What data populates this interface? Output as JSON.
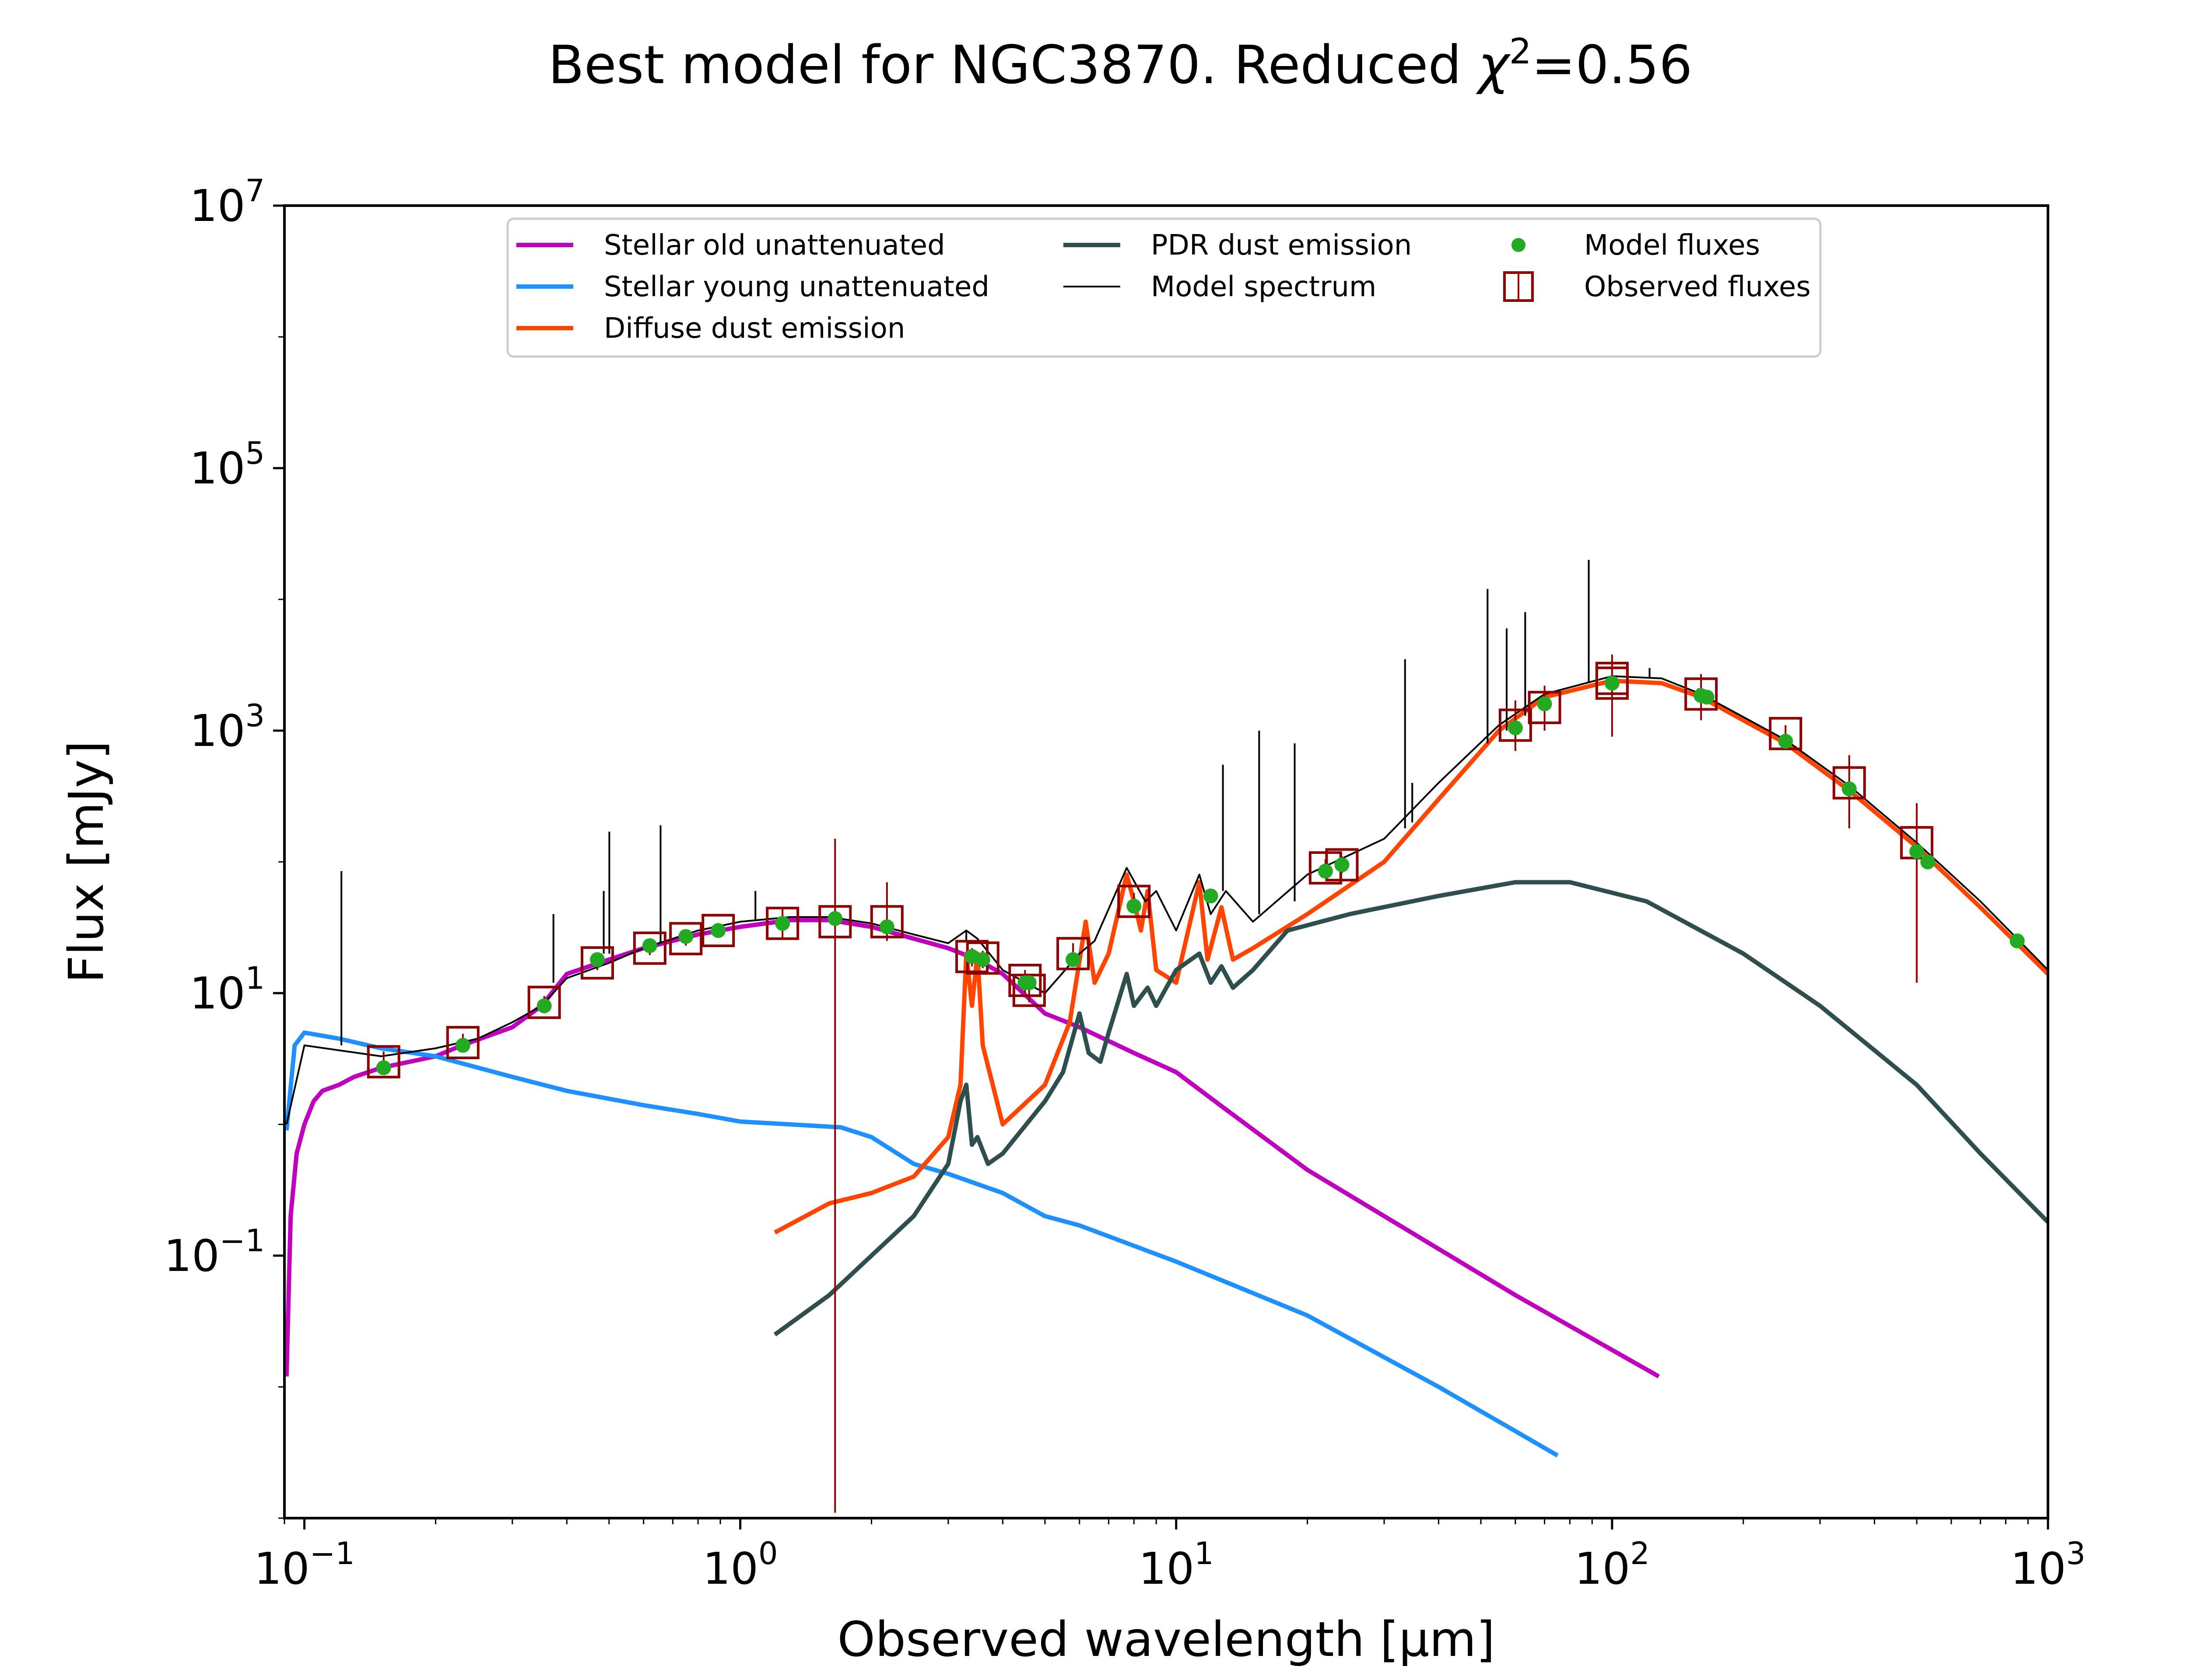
{
  "chart_data": {
    "type": "line",
    "title_main": "Best model for NGC3870. Reduced ",
    "title_chi": "χ",
    "title_chi_exp": "2",
    "title_value": "=0.56",
    "xlabel": "Observed wavelength [μm]",
    "ylabel": "Flux [mJy]",
    "x_scale": "log",
    "y_scale": "log",
    "xlim": [
      0.09,
      1000
    ],
    "ylim": [
      0.001,
      10000000
    ],
    "grid": false,
    "legend_position": "top-center",
    "x_ticks": [
      {
        "value": 0.1,
        "base": "10",
        "exp": "−1"
      },
      {
        "value": 1,
        "base": "10",
        "exp": "0"
      },
      {
        "value": 10,
        "base": "10",
        "exp": "1"
      },
      {
        "value": 100,
        "base": "10",
        "exp": "2"
      },
      {
        "value": 1000,
        "base": "10",
        "exp": "3"
      }
    ],
    "y_ticks": [
      {
        "value": 0.1,
        "base": "10",
        "exp": "−1"
      },
      {
        "value": 10,
        "base": "10",
        "exp": "1"
      },
      {
        "value": 1000,
        "base": "10",
        "exp": "3"
      },
      {
        "value": 100000,
        "base": "10",
        "exp": "5"
      },
      {
        "value": 10000000,
        "base": "10",
        "exp": "7"
      }
    ],
    "legend": [
      {
        "label": "Stellar old unattenuated",
        "kind": "line",
        "color": "#bf00bf"
      },
      {
        "label": "Stellar young unattenuated",
        "kind": "line",
        "color": "#1e90ff"
      },
      {
        "label": "Diffuse dust emission",
        "kind": "line",
        "color": "#ff4500"
      },
      {
        "label": "PDR dust emission",
        "kind": "line",
        "color": "#2f4f4f"
      },
      {
        "label": "Model spectrum",
        "kind": "thinline",
        "color": "#000000"
      },
      {
        "label": "Model fluxes",
        "kind": "dot",
        "color": "#22aa22"
      },
      {
        "label": "Observed fluxes",
        "kind": "square",
        "color": "#8b0000"
      }
    ],
    "series": [
      {
        "name": "Stellar old unattenuated",
        "color": "#bf00bf",
        "points": [
          [
            0.091,
            0.012
          ],
          [
            0.093,
            0.2
          ],
          [
            0.096,
            0.6
          ],
          [
            0.1,
            1.0
          ],
          [
            0.105,
            1.5
          ],
          [
            0.11,
            1.8
          ],
          [
            0.12,
            2.0
          ],
          [
            0.13,
            2.3
          ],
          [
            0.15,
            2.7
          ],
          [
            0.2,
            3.3
          ],
          [
            0.23,
            4.0
          ],
          [
            0.3,
            5.5
          ],
          [
            0.35,
            8.0
          ],
          [
            0.4,
            14
          ],
          [
            0.5,
            18
          ],
          [
            0.6,
            22
          ],
          [
            0.8,
            28
          ],
          [
            1.0,
            32
          ],
          [
            1.3,
            36
          ],
          [
            1.6,
            36
          ],
          [
            2.0,
            32
          ],
          [
            2.5,
            26
          ],
          [
            3.0,
            22
          ],
          [
            3.5,
            18
          ],
          [
            4.0,
            14
          ],
          [
            5.0,
            7.0
          ],
          [
            6.0,
            5.5
          ],
          [
            8.0,
            3.5
          ],
          [
            10.0,
            2.5
          ],
          [
            13.0,
            1.3
          ],
          [
            20.0,
            0.45
          ],
          [
            30.0,
            0.2
          ],
          [
            60.0,
            0.05
          ],
          [
            128.0,
            0.012
          ]
        ]
      },
      {
        "name": "Stellar young unattenuated",
        "color": "#1e90ff",
        "points": [
          [
            0.091,
            0.9
          ],
          [
            0.095,
            4.0
          ],
          [
            0.1,
            5.0
          ],
          [
            0.12,
            4.5
          ],
          [
            0.15,
            3.8
          ],
          [
            0.2,
            3.3
          ],
          [
            0.3,
            2.3
          ],
          [
            0.4,
            1.8
          ],
          [
            0.6,
            1.4
          ],
          [
            0.8,
            1.2
          ],
          [
            1.0,
            1.05
          ],
          [
            1.3,
            1.0
          ],
          [
            1.7,
            0.95
          ],
          [
            2.0,
            0.8
          ],
          [
            2.5,
            0.5
          ],
          [
            3.0,
            0.42
          ],
          [
            4.0,
            0.3
          ],
          [
            5.0,
            0.2
          ],
          [
            6.0,
            0.17
          ],
          [
            10.0,
            0.09
          ],
          [
            20.0,
            0.035
          ],
          [
            40.0,
            0.01
          ],
          [
            75.0,
            0.003
          ]
        ]
      },
      {
        "name": "Diffuse dust emission",
        "color": "#ff4500",
        "points": [
          [
            1.2,
            0.15
          ],
          [
            1.6,
            0.25
          ],
          [
            2.0,
            0.3
          ],
          [
            2.5,
            0.4
          ],
          [
            3.0,
            0.8
          ],
          [
            3.2,
            2.0
          ],
          [
            3.3,
            20
          ],
          [
            3.4,
            8
          ],
          [
            3.5,
            20
          ],
          [
            3.6,
            4
          ],
          [
            4.0,
            1.0
          ],
          [
            5.0,
            2.0
          ],
          [
            5.7,
            6
          ],
          [
            6.2,
            35
          ],
          [
            6.5,
            12
          ],
          [
            7.0,
            20
          ],
          [
            7.7,
            80
          ],
          [
            8.0,
            50
          ],
          [
            8.3,
            30
          ],
          [
            8.6,
            60
          ],
          [
            9.0,
            15
          ],
          [
            10.0,
            12
          ],
          [
            11.3,
            70
          ],
          [
            11.8,
            18
          ],
          [
            12.7,
            45
          ],
          [
            13.5,
            18
          ],
          [
            15.0,
            22
          ],
          [
            20.0,
            40
          ],
          [
            30.0,
            100
          ],
          [
            40.0,
            300
          ],
          [
            55.0,
            1000
          ],
          [
            70.0,
            1800
          ],
          [
            100.0,
            2400
          ],
          [
            130.0,
            2300
          ],
          [
            160.0,
            1800
          ],
          [
            250.0,
            800
          ],
          [
            350.0,
            350
          ],
          [
            500.0,
            130
          ],
          [
            700.0,
            45
          ],
          [
            1000.0,
            14
          ]
        ]
      },
      {
        "name": "PDR dust emission",
        "color": "#2f4f4f",
        "points": [
          [
            1.2,
            0.025
          ],
          [
            1.6,
            0.05
          ],
          [
            2.0,
            0.1
          ],
          [
            2.5,
            0.2
          ],
          [
            3.0,
            0.5
          ],
          [
            3.2,
            1.5
          ],
          [
            3.3,
            2.0
          ],
          [
            3.4,
            0.7
          ],
          [
            3.5,
            0.8
          ],
          [
            3.7,
            0.5
          ],
          [
            4.0,
            0.6
          ],
          [
            5.0,
            1.5
          ],
          [
            5.5,
            2.5
          ],
          [
            6.0,
            7
          ],
          [
            6.3,
            3.5
          ],
          [
            6.7,
            3
          ],
          [
            7.0,
            5
          ],
          [
            7.7,
            14
          ],
          [
            8.0,
            8
          ],
          [
            8.6,
            11
          ],
          [
            9.0,
            8
          ],
          [
            10.0,
            15
          ],
          [
            11.3,
            20
          ],
          [
            12.0,
            12
          ],
          [
            12.7,
            16
          ],
          [
            13.5,
            11
          ],
          [
            15.0,
            15
          ],
          [
            18.0,
            30
          ],
          [
            25.0,
            40
          ],
          [
            40.0,
            55
          ],
          [
            60.0,
            70
          ],
          [
            80.0,
            70
          ],
          [
            120.0,
            50
          ],
          [
            200.0,
            20
          ],
          [
            300.0,
            8
          ],
          [
            500.0,
            2
          ],
          [
            700.0,
            0.6
          ],
          [
            1000.0,
            0.18
          ]
        ]
      },
      {
        "name": "Model spectrum",
        "color": "#000000",
        "points": [
          [
            0.091,
            1.0
          ],
          [
            0.1,
            4.0
          ],
          [
            0.15,
            3.3
          ],
          [
            0.2,
            3.8
          ],
          [
            0.25,
            4.5
          ],
          [
            0.3,
            6.0
          ],
          [
            0.35,
            8.0
          ],
          [
            0.4,
            13
          ],
          [
            0.5,
            17
          ],
          [
            0.6,
            22
          ],
          [
            0.8,
            30
          ],
          [
            1.0,
            35
          ],
          [
            1.3,
            38
          ],
          [
            1.6,
            38
          ],
          [
            2.0,
            34
          ],
          [
            2.5,
            28
          ],
          [
            3.0,
            24
          ],
          [
            3.3,
            30
          ],
          [
            3.5,
            26
          ],
          [
            4.0,
            15
          ],
          [
            5.0,
            10
          ],
          [
            6.0,
            20
          ],
          [
            6.5,
            25
          ],
          [
            7.7,
            90
          ],
          [
            8.5,
            50
          ],
          [
            9.0,
            60
          ],
          [
            10.0,
            30
          ],
          [
            11.3,
            80
          ],
          [
            12.0,
            40
          ],
          [
            13.0,
            60
          ],
          [
            15.0,
            35
          ],
          [
            20.0,
            80
          ],
          [
            30.0,
            150
          ],
          [
            40.0,
            400
          ],
          [
            55.0,
            1100
          ],
          [
            70.0,
            1900
          ],
          [
            100.0,
            2600
          ],
          [
            130.0,
            2500
          ],
          [
            160.0,
            1900
          ],
          [
            250.0,
            850
          ],
          [
            350.0,
            380
          ],
          [
            500.0,
            140
          ],
          [
            700.0,
            50
          ],
          [
            1000.0,
            15
          ]
        ]
      }
    ],
    "emission_lines": [
      {
        "x": 0.1216,
        "base": 4.0,
        "peak": 85
      },
      {
        "x": 0.3727,
        "base": 12,
        "peak": 40
      },
      {
        "x": 0.4861,
        "base": 20,
        "peak": 60
      },
      {
        "x": 0.5007,
        "base": 20,
        "peak": 170
      },
      {
        "x": 0.6563,
        "base": 24,
        "peak": 190
      },
      {
        "x": 1.0833,
        "base": 36,
        "peak": 60
      },
      {
        "x": 3.3,
        "base": 30,
        "peak": 25
      },
      {
        "x": 12.8,
        "base": 60,
        "peak": 550
      },
      {
        "x": 15.5,
        "base": 40,
        "peak": 1000
      },
      {
        "x": 18.7,
        "base": 50,
        "peak": 800
      },
      {
        "x": 33.5,
        "base": 180,
        "peak": 3500
      },
      {
        "x": 34.8,
        "base": 200,
        "peak": 400
      },
      {
        "x": 51.8,
        "base": 800,
        "peak": 12000
      },
      {
        "x": 57.3,
        "base": 1000,
        "peak": 6000
      },
      {
        "x": 63.2,
        "base": 1300,
        "peak": 8000
      },
      {
        "x": 88.4,
        "base": 2300,
        "peak": 20000
      },
      {
        "x": 121.9,
        "base": 2500,
        "peak": 3000
      },
      {
        "x": 157.7,
        "base": 1900,
        "peak": 2100
      }
    ],
    "model_fluxes": [
      [
        0.152,
        2.7
      ],
      [
        0.231,
        4.0
      ],
      [
        0.355,
        8.0
      ],
      [
        0.47,
        18
      ],
      [
        0.62,
        23
      ],
      [
        0.75,
        27
      ],
      [
        0.89,
        30
      ],
      [
        1.25,
        34
      ],
      [
        1.65,
        37
      ],
      [
        2.17,
        32
      ],
      [
        3.4,
        19
      ],
      [
        3.6,
        18
      ],
      [
        4.5,
        12
      ],
      [
        4.6,
        12
      ],
      [
        5.8,
        18
      ],
      [
        8.0,
        46
      ],
      [
        12.0,
        55
      ],
      [
        22.0,
        85
      ],
      [
        24.0,
        95
      ],
      [
        60.0,
        1050
      ],
      [
        70.0,
        1600
      ],
      [
        100.0,
        2300
      ],
      [
        160.0,
        1850
      ],
      [
        165.0,
        1800
      ],
      [
        250.0,
        830
      ],
      [
        350.0,
        360
      ],
      [
        500.0,
        120
      ],
      [
        530.0,
        100
      ],
      [
        850.0,
        25
      ]
    ],
    "observed_fluxes": [
      {
        "x": 0.152,
        "y": 3.0,
        "lo": 2.5,
        "hi": 3.6
      },
      {
        "x": 0.231,
        "y": 4.2,
        "lo": 3.6,
        "hi": 4.9
      },
      {
        "x": 0.355,
        "y": 8.5,
        "lo": 7.6,
        "hi": 9.5
      },
      {
        "x": 0.47,
        "y": 17,
        "lo": 15,
        "hi": 20
      },
      {
        "x": 0.62,
        "y": 22,
        "lo": 19.5,
        "hi": 25
      },
      {
        "x": 0.75,
        "y": 26,
        "lo": 23,
        "hi": 29
      },
      {
        "x": 0.89,
        "y": 30,
        "lo": 27,
        "hi": 33
      },
      {
        "x": 1.25,
        "y": 34,
        "lo": 26,
        "hi": 45
      },
      {
        "x": 1.65,
        "y": 35,
        "lo": 0.0011,
        "hi": 150
      },
      {
        "x": 2.17,
        "y": 35,
        "lo": 25,
        "hi": 70
      },
      {
        "x": 3.4,
        "y": 19,
        "lo": 16,
        "hi": 22
      },
      {
        "x": 3.6,
        "y": 18.5,
        "lo": 15.5,
        "hi": 21
      },
      {
        "x": 4.5,
        "y": 12.5,
        "lo": 10,
        "hi": 15
      },
      {
        "x": 4.6,
        "y": 10.5,
        "lo": 8.5,
        "hi": 13
      },
      {
        "x": 5.8,
        "y": 20,
        "lo": 17,
        "hi": 24
      },
      {
        "x": 8.0,
        "y": 50,
        "lo": 42,
        "hi": 58
      },
      {
        "x": 22.0,
        "y": 90,
        "lo": 75,
        "hi": 105
      },
      {
        "x": 24.0,
        "y": 95,
        "lo": 82,
        "hi": 110
      },
      {
        "x": 60.0,
        "y": 1100,
        "lo": 700,
        "hi": 1700
      },
      {
        "x": 70.0,
        "y": 1500,
        "lo": 1000,
        "hi": 2200
      },
      {
        "x": 100.0,
        "y": 2300,
        "lo": 900,
        "hi": 3800
      },
      {
        "x": 100.0,
        "y": 2500,
        "lo": 2000,
        "hi": 3000
      },
      {
        "x": 160.0,
        "y": 1900,
        "lo": 1200,
        "hi": 2700
      },
      {
        "x": 250.0,
        "y": 950,
        "lo": 800,
        "hi": 1100
      },
      {
        "x": 350.0,
        "y": 400,
        "lo": 180,
        "hi": 650
      },
      {
        "x": 500.0,
        "y": 140,
        "lo": 12,
        "hi": 280
      }
    ]
  }
}
